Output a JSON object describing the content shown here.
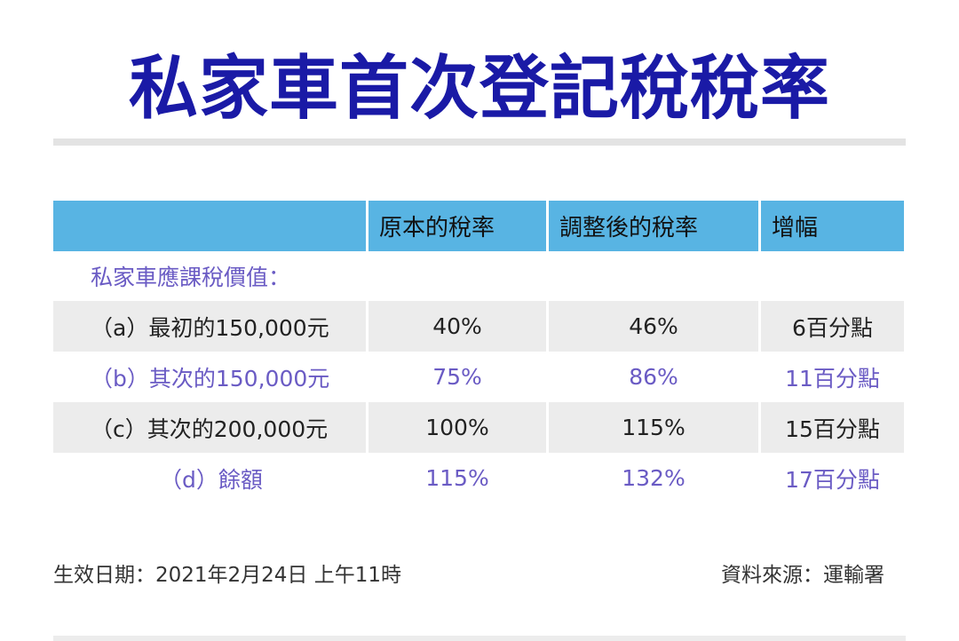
{
  "title": "私家車首次登記稅稅率",
  "table": {
    "headers": [
      "",
      "原本的稅率",
      "調整後的稅率",
      "增幅"
    ],
    "section_label": "私家車應課稅價值：",
    "rows": [
      {
        "label": "（a）最初的150,000元",
        "original": "40%",
        "adjusted": "46%",
        "increase": "6百分點"
      },
      {
        "label": "（b）其次的150,000元",
        "original": "75%",
        "adjusted": "86%",
        "increase": "11百分點"
      },
      {
        "label": "（c）其次的200,000元",
        "original": "100%",
        "adjusted": "115%",
        "increase": "15百分點"
      },
      {
        "label": "（d）餘額",
        "original": "115%",
        "adjusted": "132%",
        "increase": "17百分點"
      }
    ]
  },
  "footer": {
    "effective": "生效日期：2021年2月24日 上午11時",
    "source": "資料來源：運輸署"
  },
  "colors": {
    "title": "#1a1aa6",
    "header_bg": "#58b4e3",
    "accent_text": "#6a5bc4",
    "grey_row": "#ececec"
  }
}
